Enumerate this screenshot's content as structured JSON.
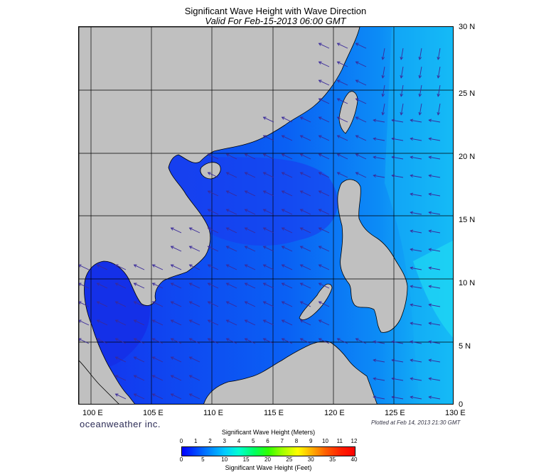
{
  "header": {
    "title": "Significant Wave Height with Wave Direction",
    "subtitle": "Valid For Feb-15-2013 06:00 GMT"
  },
  "map": {
    "lon_range": [
      99,
      130
    ],
    "lat_range": [
      0,
      30
    ],
    "lon_labels": [
      "100 E",
      "105 E",
      "110 E",
      "115 E",
      "120 E",
      "125 E",
      "130 E"
    ],
    "lat_labels": [
      "30 N",
      "25 N",
      "20 N",
      "15 N",
      "10 N",
      "5 N",
      "0"
    ],
    "colors": {
      "land": "#c0c0c0",
      "sea_deep": "#1a3cf0",
      "sea_mid": "#0a6cf5",
      "sea_light": "#16b8f6",
      "arrow": "#3a2a9a"
    }
  },
  "footer": {
    "brand": "oceanweather inc.",
    "plotted": "Plotted at Feb 14, 2013 21:30 GMT"
  },
  "legend": {
    "title_top": "Significant Wave Height (Meters)",
    "meters": [
      "0",
      "1",
      "2",
      "3",
      "4",
      "5",
      "6",
      "7",
      "8",
      "9",
      "10",
      "11",
      "12"
    ],
    "feet": [
      "0",
      "5",
      "10",
      "15",
      "20",
      "25",
      "30",
      "35",
      "40"
    ],
    "title_bottom": "Significant Wave Height (Feet)"
  }
}
